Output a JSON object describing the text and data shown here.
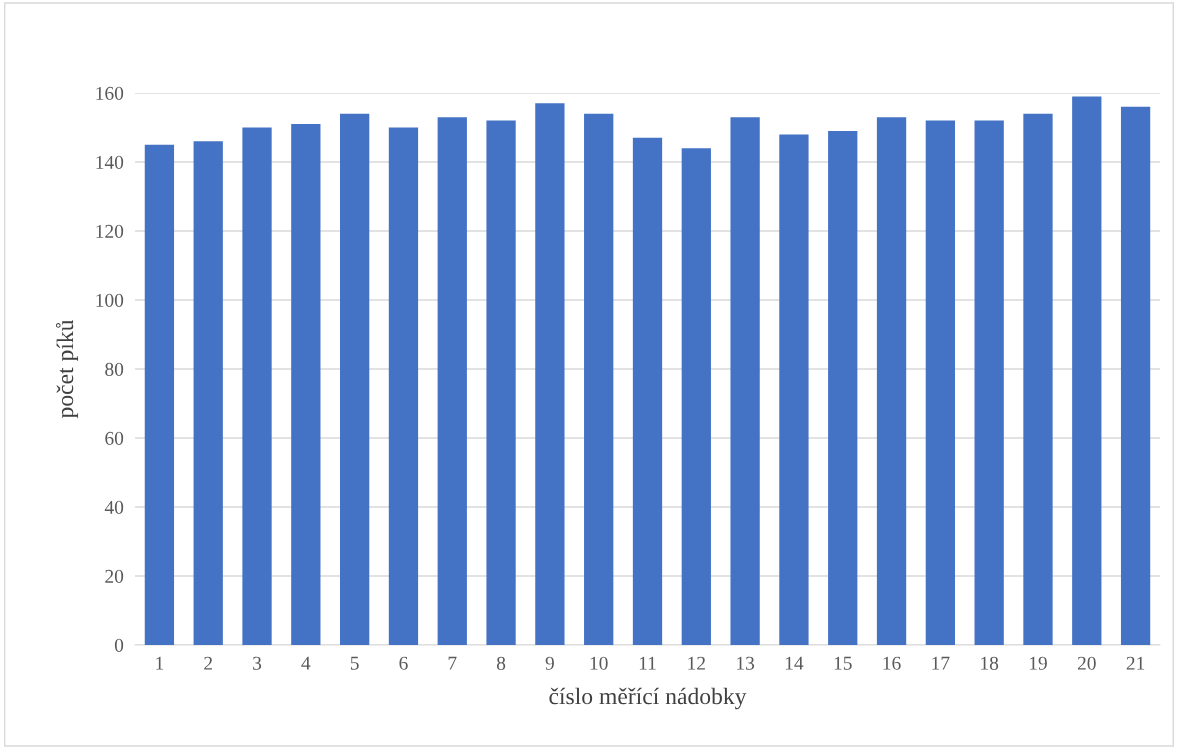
{
  "chart_data": {
    "type": "bar",
    "xlabel": "číslo měřící nádobky",
    "ylabel": "počet píků",
    "categories": [
      "1",
      "2",
      "3",
      "4",
      "5",
      "6",
      "7",
      "8",
      "9",
      "10",
      "11",
      "12",
      "13",
      "14",
      "15",
      "16",
      "17",
      "18",
      "19",
      "20",
      "21"
    ],
    "values": [
      145,
      146,
      150,
      151,
      154,
      150,
      153,
      152,
      157,
      154,
      147,
      144,
      153,
      148,
      149,
      153,
      152,
      152,
      154,
      159,
      156
    ],
    "color": "#4472c4",
    "ylim": [
      0,
      160
    ],
    "yticks": [
      0,
      20,
      40,
      60,
      80,
      100,
      120,
      140,
      160
    ],
    "grid": "y"
  }
}
